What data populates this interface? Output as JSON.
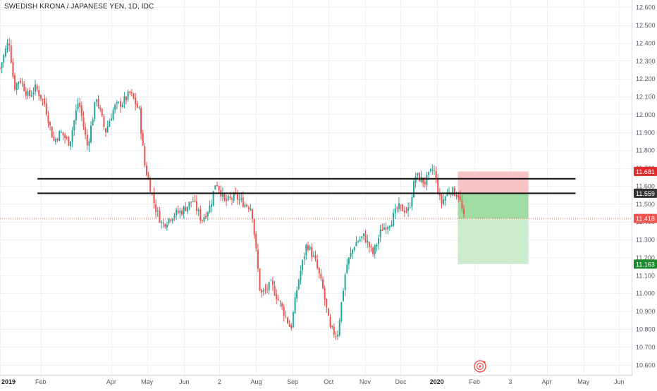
{
  "chart_title": "SWEDISH KRONA / JAPANESE YEN, 1D, IDC",
  "colors": {
    "up": "#26a69a",
    "down": "#ef5350",
    "grid": "#eef0f3",
    "axis_text": "#555a64",
    "level_line": "#111111",
    "stop_zone": "#f8c5c7",
    "target_zone_near": "#9fdda4",
    "target_zone_far": "#cdeccd",
    "current_price": "#ef5350",
    "stop_label": "#e5282c",
    "target_label": "#1b8a2a",
    "current_label_bg": "#333333"
  },
  "logo_icon": "tradingview-event-icon",
  "chart_data": {
    "type": "candlestick",
    "title": "SWEDISH KRONA / JAPANESE YEN, 1D, IDC",
    "y_axis": {
      "ticks": [
        "12.600",
        "12.500",
        "12.400",
        "12.300",
        "12.200",
        "12.100",
        "12.000",
        "11.900",
        "11.800",
        "11.700",
        "11.600",
        "11.500",
        "11.400",
        "11.300",
        "11.200",
        "11.100",
        "11.000",
        "10.900",
        "10.800",
        "10.700",
        "10.600"
      ],
      "tick_values": [
        12.6,
        12.5,
        12.4,
        12.3,
        12.2,
        12.1,
        12.0,
        11.9,
        11.8,
        11.7,
        11.6,
        11.5,
        11.4,
        11.3,
        11.2,
        11.1,
        11.0,
        10.9,
        10.8,
        10.7,
        10.6
      ],
      "range": [
        10.54,
        12.64
      ]
    },
    "x_axis": {
      "labels": [
        "2019",
        "Feb",
        "Apr",
        "May",
        "Jun",
        "2",
        "Aug",
        "Sep",
        "Oct",
        "Nov",
        "Dec",
        "2020",
        "Feb",
        "3",
        "Apr",
        "May",
        "Jun"
      ],
      "label_positions": [
        0,
        1.14,
        3.12,
        4.12,
        5.16,
        6.15,
        7.18,
        8.2,
        9.21,
        10.23,
        11.23,
        12.24,
        13.3,
        14.3,
        15.32,
        16.35,
        17.35
      ],
      "range": [
        0,
        17.7
      ]
    },
    "levels": [
      11.64,
      11.559
    ],
    "level_span": [
      1.05,
      16.13
    ],
    "position": {
      "type": "short",
      "entry": 11.559,
      "stop": 11.681,
      "target": 11.163,
      "current": 11.418,
      "span": [
        12.83,
        14.81
      ]
    },
    "price_labels": {
      "stop": "11.681",
      "entry": "11.559",
      "current": "11.418",
      "target": "11.163"
    },
    "waypoints": [
      [
        0.0,
        12.26
      ],
      [
        0.25,
        12.42
      ],
      [
        0.4,
        12.15
      ],
      [
        0.55,
        12.2
      ],
      [
        0.8,
        12.1
      ],
      [
        1.0,
        12.15
      ],
      [
        1.25,
        12.06
      ],
      [
        1.5,
        11.85
      ],
      [
        1.7,
        11.9
      ],
      [
        1.95,
        11.84
      ],
      [
        2.2,
        12.08
      ],
      [
        2.45,
        11.82
      ],
      [
        2.7,
        12.1
      ],
      [
        2.95,
        11.9
      ],
      [
        3.2,
        12.04
      ],
      [
        3.45,
        12.07
      ],
      [
        3.65,
        12.12
      ],
      [
        3.9,
        12.02
      ],
      [
        4.05,
        11.72
      ],
      [
        4.35,
        11.48
      ],
      [
        4.55,
        11.38
      ],
      [
        4.85,
        11.44
      ],
      [
        5.1,
        11.46
      ],
      [
        5.4,
        11.52
      ],
      [
        5.65,
        11.41
      ],
      [
        5.9,
        11.49
      ],
      [
        6.05,
        11.63
      ],
      [
        6.3,
        11.51
      ],
      [
        6.6,
        11.54
      ],
      [
        6.85,
        11.5
      ],
      [
        7.05,
        11.48
      ],
      [
        7.3,
        10.99
      ],
      [
        7.6,
        11.05
      ],
      [
        7.9,
        10.92
      ],
      [
        8.15,
        10.8
      ],
      [
        8.35,
        11.06
      ],
      [
        8.6,
        11.28
      ],
      [
        8.85,
        11.17
      ],
      [
        9.05,
        11.02
      ],
      [
        9.25,
        10.8
      ],
      [
        9.45,
        10.76
      ],
      [
        9.7,
        11.15
      ],
      [
        9.95,
        11.28
      ],
      [
        10.2,
        11.32
      ],
      [
        10.45,
        11.22
      ],
      [
        10.7,
        11.36
      ],
      [
        10.95,
        11.4
      ],
      [
        11.15,
        11.48
      ],
      [
        11.45,
        11.46
      ],
      [
        11.65,
        11.66
      ],
      [
        11.9,
        11.62
      ],
      [
        12.15,
        11.7
      ],
      [
        12.35,
        11.5
      ],
      [
        12.6,
        11.58
      ],
      [
        12.85,
        11.55
      ],
      [
        13.0,
        11.42
      ]
    ]
  }
}
